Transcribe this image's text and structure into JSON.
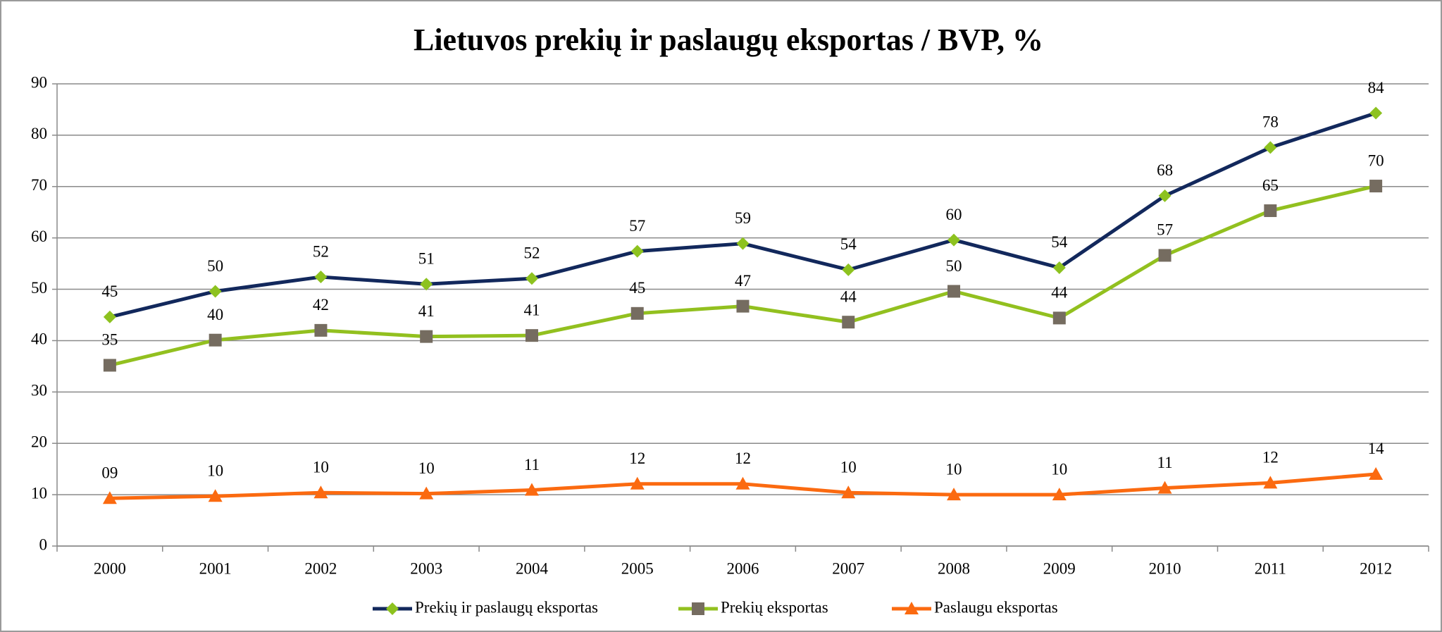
{
  "chart_data": {
    "type": "line",
    "title": "Lietuvos prekių ir paslaugų eksportas / BVP, %",
    "categories": [
      "2000",
      "2001",
      "2002",
      "2003",
      "2004",
      "2005",
      "2006",
      "2007",
      "2008",
      "2009",
      "2010",
      "2011",
      "2012"
    ],
    "series": [
      {
        "name": "Prekių ir paslaugų eksportas",
        "color": "#12285c",
        "marker": "diamond",
        "marker_color": "#8dc21f",
        "values": [
          44.6,
          49.6,
          52.4,
          51.0,
          52.1,
          57.4,
          58.9,
          53.8,
          59.6,
          54.2,
          68.2,
          77.6,
          84.3
        ],
        "value_labels": [
          "45",
          "50",
          "52",
          "51",
          "52",
          "57",
          "59",
          "54",
          "60",
          "54",
          "68",
          "78",
          "84"
        ]
      },
      {
        "name": "Prekių eksportas",
        "color": "#92c01f",
        "marker": "square",
        "marker_color": "#756c60",
        "values": [
          35.2,
          40.1,
          42.0,
          40.8,
          41.0,
          45.3,
          46.7,
          43.6,
          49.6,
          44.4,
          56.6,
          65.3,
          70.1
        ],
        "value_labels": [
          "35",
          "40",
          "42",
          "41",
          "41",
          "45",
          "47",
          "44",
          "50",
          "44",
          "57",
          "65",
          "70"
        ]
      },
      {
        "name": "Paslaugu eksportas",
        "color": "#fb6a10",
        "marker": "triangle",
        "marker_color": "#fb6a10",
        "values": [
          9.3,
          9.7,
          10.4,
          10.2,
          10.9,
          12.1,
          12.1,
          10.4,
          10.0,
          10.0,
          11.3,
          12.3,
          14.0
        ],
        "value_labels": [
          "09",
          "10",
          "10",
          "10",
          "11",
          "12",
          "12",
          "10",
          "10",
          "10",
          "11",
          "12",
          "14"
        ]
      }
    ],
    "ylim": [
      0,
      90
    ],
    "yticks": [
      0,
      10,
      20,
      30,
      40,
      50,
      60,
      70,
      80,
      90
    ],
    "grid": true,
    "legend": "bottom"
  }
}
